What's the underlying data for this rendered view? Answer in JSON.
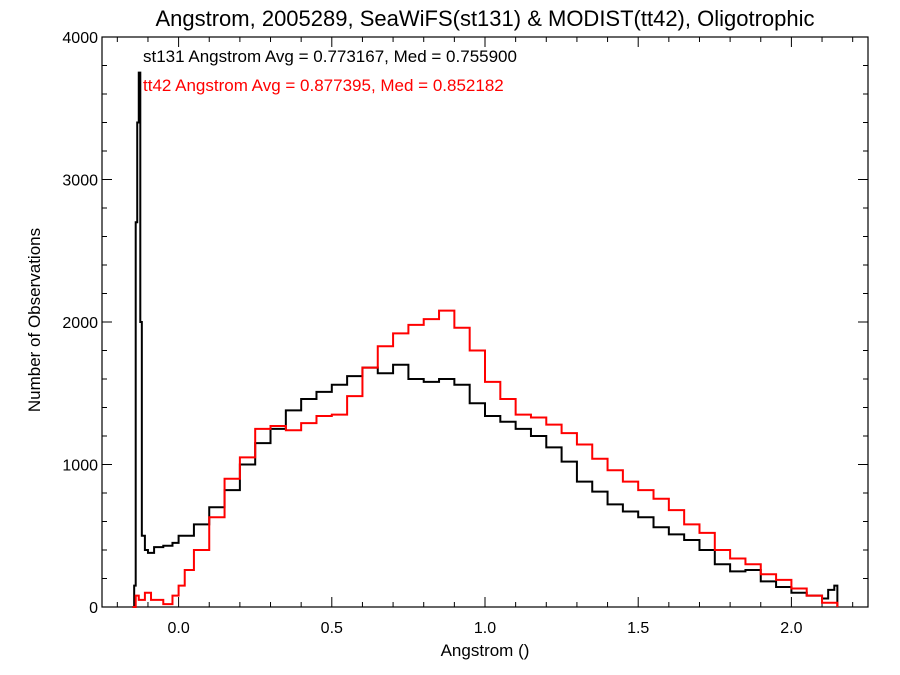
{
  "chart_data": {
    "type": "line",
    "step": true,
    "title": "Angstrom, 2005289, SeaWiFS(st131) & MODIST(tt42), Oligotrophic",
    "xlabel": "Angstrom ()",
    "ylabel": "Number of Observations",
    "xlim": [
      -0.25,
      2.25
    ],
    "ylim": [
      0,
      4000
    ],
    "xticks": [
      0.0,
      0.5,
      1.0,
      1.5,
      2.0
    ],
    "xtick_labels": [
      "0.0",
      "0.5",
      "1.0",
      "1.5",
      "2.0"
    ],
    "yticks": [
      0,
      1000,
      2000,
      3000,
      4000
    ],
    "ytick_labels": [
      "0",
      "1000",
      "2000",
      "3000",
      "4000"
    ],
    "grid": false,
    "annotations": [
      {
        "text": "st131 Angstrom Avg = 0.773167, Med = 0.755900",
        "color": "#000000"
      },
      {
        "text": "tt42 Angstrom Avg = 0.877395, Med = 0.852182",
        "color": "#ff0000"
      }
    ],
    "series": [
      {
        "color": "#000000",
        "x": [
          -0.15,
          -0.145,
          -0.14,
          -0.135,
          -0.13,
          -0.125,
          -0.12,
          -0.11,
          -0.1,
          -0.08,
          -0.05,
          -0.02,
          0.0,
          0.05,
          0.1,
          0.15,
          0.2,
          0.25,
          0.3,
          0.35,
          0.4,
          0.45,
          0.5,
          0.55,
          0.6,
          0.65,
          0.7,
          0.75,
          0.8,
          0.85,
          0.9,
          0.95,
          1.0,
          1.05,
          1.1,
          1.15,
          1.2,
          1.25,
          1.3,
          1.35,
          1.4,
          1.45,
          1.5,
          1.55,
          1.6,
          1.65,
          1.7,
          1.75,
          1.8,
          1.85,
          1.9,
          1.95,
          2.0,
          2.05,
          2.1,
          2.12,
          2.14,
          2.15
        ],
        "y": [
          0,
          150,
          2700,
          3400,
          3750,
          2000,
          500,
          400,
          380,
          420,
          430,
          450,
          500,
          580,
          700,
          820,
          1000,
          1150,
          1250,
          1380,
          1460,
          1510,
          1560,
          1620,
          1680,
          1640,
          1700,
          1600,
          1580,
          1600,
          1560,
          1430,
          1340,
          1300,
          1250,
          1200,
          1120,
          1020,
          880,
          810,
          720,
          670,
          630,
          560,
          510,
          470,
          400,
          300,
          250,
          260,
          180,
          140,
          100,
          80,
          60,
          120,
          150,
          0
        ]
      },
      {
        "color": "#ff0000",
        "x": [
          -0.15,
          -0.14,
          -0.13,
          -0.11,
          -0.09,
          -0.05,
          -0.02,
          0.0,
          0.02,
          0.05,
          0.1,
          0.15,
          0.2,
          0.25,
          0.3,
          0.35,
          0.4,
          0.45,
          0.5,
          0.55,
          0.6,
          0.65,
          0.7,
          0.75,
          0.8,
          0.85,
          0.9,
          0.95,
          1.0,
          1.05,
          1.1,
          1.15,
          1.2,
          1.25,
          1.3,
          1.35,
          1.4,
          1.45,
          1.5,
          1.55,
          1.6,
          1.65,
          1.7,
          1.75,
          1.8,
          1.85,
          1.9,
          1.95,
          2.0,
          2.05,
          2.1,
          2.15
        ],
        "y": [
          0,
          80,
          50,
          100,
          50,
          20,
          80,
          150,
          260,
          400,
          630,
          900,
          1050,
          1250,
          1270,
          1240,
          1290,
          1340,
          1350,
          1480,
          1680,
          1830,
          1920,
          1980,
          2020,
          2080,
          1960,
          1800,
          1580,
          1460,
          1350,
          1330,
          1280,
          1220,
          1140,
          1040,
          960,
          880,
          820,
          760,
          680,
          580,
          520,
          400,
          340,
          300,
          230,
          190,
          130,
          80,
          30,
          0
        ]
      }
    ]
  }
}
